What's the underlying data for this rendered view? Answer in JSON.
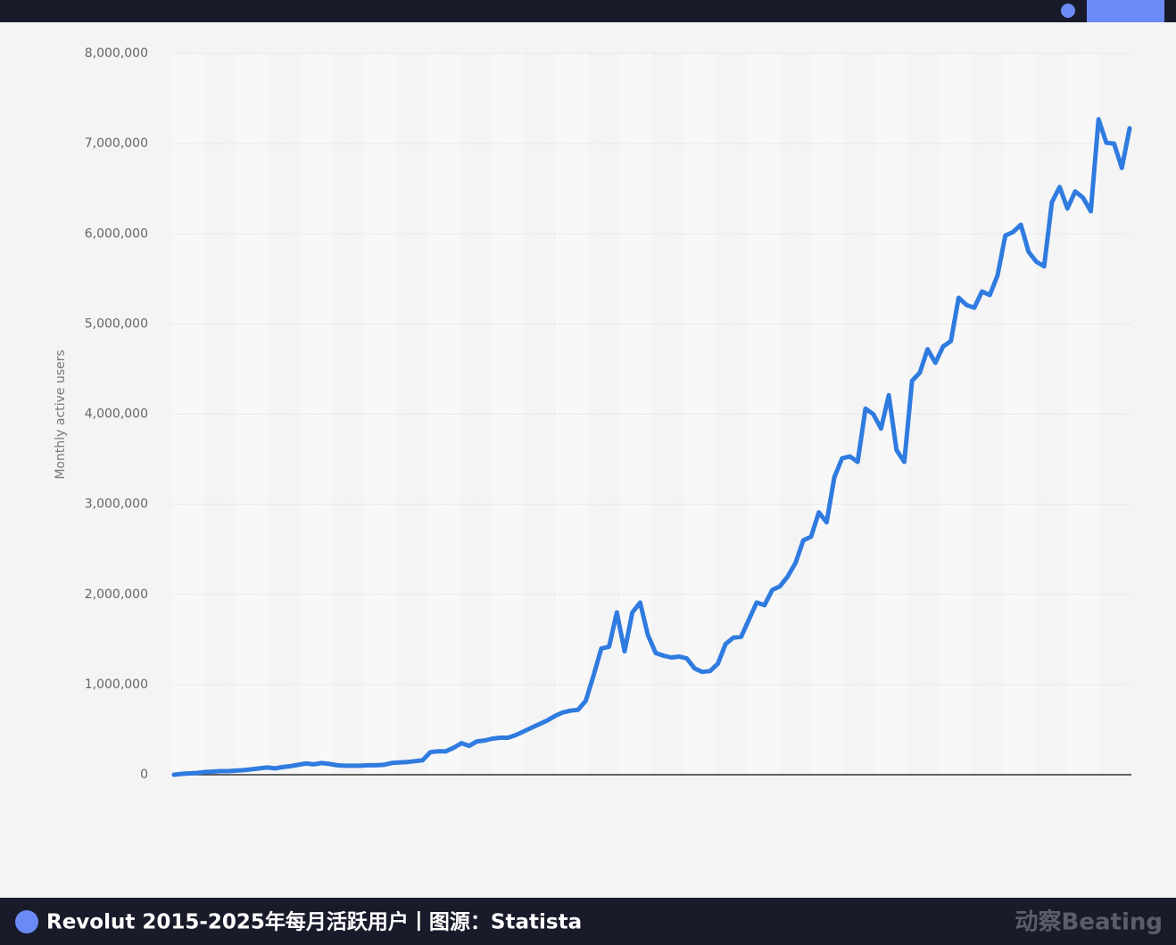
{
  "chart_data": {
    "type": "line",
    "y_label": "Monthly active users",
    "caption": "Revolut 2015-2025年每月活跃用户丨图源：Statista",
    "watermark": "动察Beating",
    "color": "#2f7be0",
    "grid": true,
    "ylim": [
      0,
      8000000
    ],
    "yticks": [
      0,
      {
        "value": 1000000,
        "label": "1,000,000"
      },
      {
        "value": 2000000,
        "label": "2,000,000"
      },
      {
        "value": 3000000,
        "label": "3,000,000"
      },
      {
        "value": 4000000,
        "label": "4,000,000"
      },
      {
        "value": 5000000,
        "label": "5,000,000"
      },
      {
        "value": 6000000,
        "label": "6,000,000"
      },
      {
        "value": 7000000,
        "label": "7,000,000"
      },
      {
        "value": 8000000,
        "label": "8,000,000"
      }
    ],
    "values": [
      0,
      10000,
      15000,
      20000,
      30000,
      35000,
      40000,
      40000,
      45000,
      50000,
      60000,
      70000,
      80000,
      70000,
      85000,
      95000,
      110000,
      125000,
      115000,
      130000,
      120000,
      105000,
      100000,
      100000,
      100000,
      105000,
      105000,
      110000,
      130000,
      135000,
      140000,
      150000,
      160000,
      250000,
      260000,
      260000,
      300000,
      350000,
      320000,
      370000,
      380000,
      400000,
      410000,
      410000,
      440000,
      480000,
      520000,
      560000,
      600000,
      650000,
      690000,
      710000,
      720000,
      820000,
      1100000,
      1400000,
      1420000,
      1800000,
      1370000,
      1800000,
      1910000,
      1550000,
      1350000,
      1320000,
      1300000,
      1310000,
      1290000,
      1180000,
      1140000,
      1150000,
      1230000,
      1450000,
      1520000,
      1530000,
      1720000,
      1910000,
      1880000,
      2050000,
      2090000,
      2200000,
      2350000,
      2600000,
      2640000,
      2910000,
      2800000,
      3300000,
      3510000,
      3530000,
      3470000,
      4060000,
      4000000,
      3840000,
      4210000,
      3600000,
      3470000,
      4370000,
      4460000,
      4720000,
      4570000,
      4750000,
      4810000,
      5290000,
      5210000,
      5180000,
      5360000,
      5320000,
      5540000,
      5980000,
      6020000,
      6100000,
      5800000,
      5690000,
      5640000,
      6350000,
      6520000,
      6280000,
      6470000,
      6400000,
      6250000,
      7270000,
      7010000,
      7000000,
      6730000,
      7170000
    ]
  }
}
